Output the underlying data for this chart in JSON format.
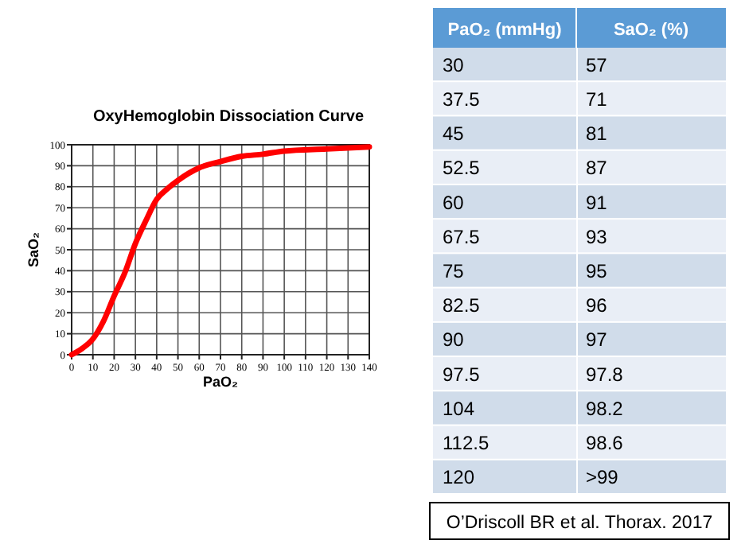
{
  "chart_data": [
    {
      "type": "line",
      "title": "OxyHemoglobin Dissociation Curve",
      "xlabel": "PaO₂",
      "ylabel": "SaO₂",
      "x": [
        0,
        5,
        10,
        15,
        20,
        25,
        30,
        35,
        40,
        45,
        50,
        60,
        70,
        80,
        90,
        100,
        120,
        140
      ],
      "series": [
        {
          "color": "#ff0000",
          "values": [
            0,
            3,
            7.5,
            16,
            28,
            39,
            53,
            64,
            74,
            79,
            83,
            89,
            92,
            94.5,
            95.5,
            97,
            98,
            99
          ]
        }
      ],
      "xlim": [
        0,
        140
      ],
      "xticks": [
        0,
        10,
        20,
        30,
        40,
        50,
        60,
        70,
        80,
        90,
        100,
        110,
        120,
        130,
        140
      ],
      "ylim": [
        0,
        100
      ],
      "yticks": [
        0,
        10,
        20,
        30,
        40,
        50,
        60,
        70,
        80,
        90,
        100
      ],
      "grid": true,
      "marker": "none",
      "line_style": "solid"
    },
    {
      "type": "other",
      "xlabel": "PaO₂ (mmHg)",
      "ylabel": "SaO₂ (%)",
      "categories": [
        "30",
        "37.5",
        "45",
        "52.5",
        "60",
        "67.5",
        "75",
        "82.5",
        "90",
        "97.5",
        "104",
        "112.5",
        "120"
      ],
      "value_labels": [
        "57",
        "71",
        "81",
        "87",
        "91",
        "93",
        "95",
        "96",
        "97",
        "97.8",
        "98.2",
        "98.6",
        ">99"
      ],
      "annotations": [
        "O’Driscoll BR et al. Thorax. 2017"
      ]
    }
  ]
}
